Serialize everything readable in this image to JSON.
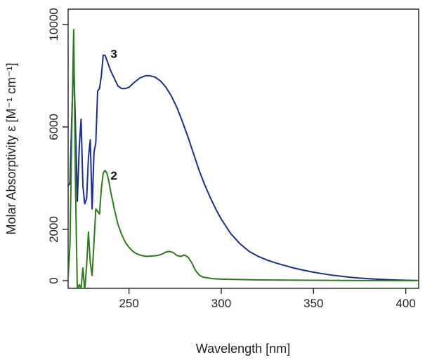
{
  "chart_data": {
    "type": "line",
    "title": "",
    "xlabel": "Wavelength [nm]",
    "ylabel": "Molar Absorptivity ε [M⁻¹ cm⁻¹]",
    "xlim": [
      217,
      407
    ],
    "ylim": [
      -300,
      10600
    ],
    "xticks": [
      250,
      300,
      350,
      400
    ],
    "xtick_labels": [
      "250",
      "300",
      "350",
      "400"
    ],
    "yticks": [
      0,
      2000,
      6000,
      10000
    ],
    "ytick_labels": [
      "0",
      "2000",
      "6000",
      "10000"
    ],
    "grid": false,
    "legend": "none",
    "series": [
      {
        "name": "3",
        "label": "3",
        "color": "#1a2f8c",
        "label_at": [
          240,
          8700
        ],
        "points": [
          [
            217,
            3700
          ],
          [
            218,
            3800
          ],
          [
            219,
            6500
          ],
          [
            220,
            8600
          ],
          [
            221,
            6000
          ],
          [
            222,
            3100
          ],
          [
            223,
            5200
          ],
          [
            224,
            6300
          ],
          [
            225,
            3700
          ],
          [
            226,
            3000
          ],
          [
            227,
            3200
          ],
          [
            228,
            4800
          ],
          [
            229,
            5500
          ],
          [
            230,
            2800
          ],
          [
            231,
            5000
          ],
          [
            232,
            5400
          ],
          [
            233,
            7400
          ],
          [
            234,
            7500
          ],
          [
            235,
            8000
          ],
          [
            236,
            8800
          ],
          [
            237,
            8800
          ],
          [
            238,
            8600
          ],
          [
            239,
            8400
          ],
          [
            240,
            8200
          ],
          [
            242,
            7900
          ],
          [
            244,
            7600
          ],
          [
            246,
            7500
          ],
          [
            248,
            7500
          ],
          [
            250,
            7550
          ],
          [
            253,
            7750
          ],
          [
            256,
            7920
          ],
          [
            259,
            8000
          ],
          [
            261,
            8000
          ],
          [
            264,
            7950
          ],
          [
            267,
            7800
          ],
          [
            270,
            7550
          ],
          [
            273,
            7200
          ],
          [
            276,
            6750
          ],
          [
            279,
            6200
          ],
          [
            282,
            5600
          ],
          [
            285,
            4950
          ],
          [
            288,
            4300
          ],
          [
            291,
            3750
          ],
          [
            294,
            3250
          ],
          [
            297,
            2800
          ],
          [
            300,
            2400
          ],
          [
            305,
            1850
          ],
          [
            310,
            1450
          ],
          [
            315,
            1150
          ],
          [
            320,
            950
          ],
          [
            325,
            800
          ],
          [
            330,
            680
          ],
          [
            335,
            580
          ],
          [
            340,
            480
          ],
          [
            345,
            400
          ],
          [
            350,
            330
          ],
          [
            355,
            270
          ],
          [
            360,
            215
          ],
          [
            365,
            170
          ],
          [
            370,
            130
          ],
          [
            375,
            100
          ],
          [
            380,
            75
          ],
          [
            385,
            55
          ],
          [
            390,
            40
          ],
          [
            395,
            25
          ],
          [
            400,
            15
          ],
          [
            407,
            5
          ]
        ]
      },
      {
        "name": "2",
        "label": "2",
        "color": "#2e7a1e",
        "label_at": [
          240,
          3950
        ],
        "points": [
          [
            217,
            100
          ],
          [
            218,
            1400
          ],
          [
            219,
            6000
          ],
          [
            220,
            9800
          ],
          [
            221,
            3600
          ],
          [
            222,
            -400
          ],
          [
            223,
            -150
          ],
          [
            224,
            -300
          ],
          [
            225,
            500
          ],
          [
            226,
            -400
          ],
          [
            227,
            600
          ],
          [
            228,
            1900
          ],
          [
            229,
            700
          ],
          [
            230,
            200
          ],
          [
            231,
            1500
          ],
          [
            232,
            2800
          ],
          [
            233,
            2700
          ],
          [
            234,
            2600
          ],
          [
            235,
            3600
          ],
          [
            236,
            4200
          ],
          [
            237,
            4300
          ],
          [
            238,
            4200
          ],
          [
            239,
            3900
          ],
          [
            240,
            3500
          ],
          [
            242,
            2800
          ],
          [
            244,
            2200
          ],
          [
            246,
            1800
          ],
          [
            248,
            1500
          ],
          [
            250,
            1300
          ],
          [
            252,
            1150
          ],
          [
            254,
            1050
          ],
          [
            256,
            1000
          ],
          [
            258,
            960
          ],
          [
            260,
            950
          ],
          [
            262,
            960
          ],
          [
            264,
            970
          ],
          [
            266,
            990
          ],
          [
            268,
            1040
          ],
          [
            270,
            1120
          ],
          [
            272,
            1140
          ],
          [
            274,
            1100
          ],
          [
            276,
            980
          ],
          [
            278,
            950
          ],
          [
            280,
            1000
          ],
          [
            282,
            920
          ],
          [
            284,
            700
          ],
          [
            286,
            400
          ],
          [
            288,
            220
          ],
          [
            290,
            140
          ],
          [
            295,
            80
          ],
          [
            300,
            60
          ],
          [
            320,
            30
          ],
          [
            350,
            15
          ],
          [
            380,
            5
          ],
          [
            407,
            0
          ]
        ]
      }
    ]
  }
}
